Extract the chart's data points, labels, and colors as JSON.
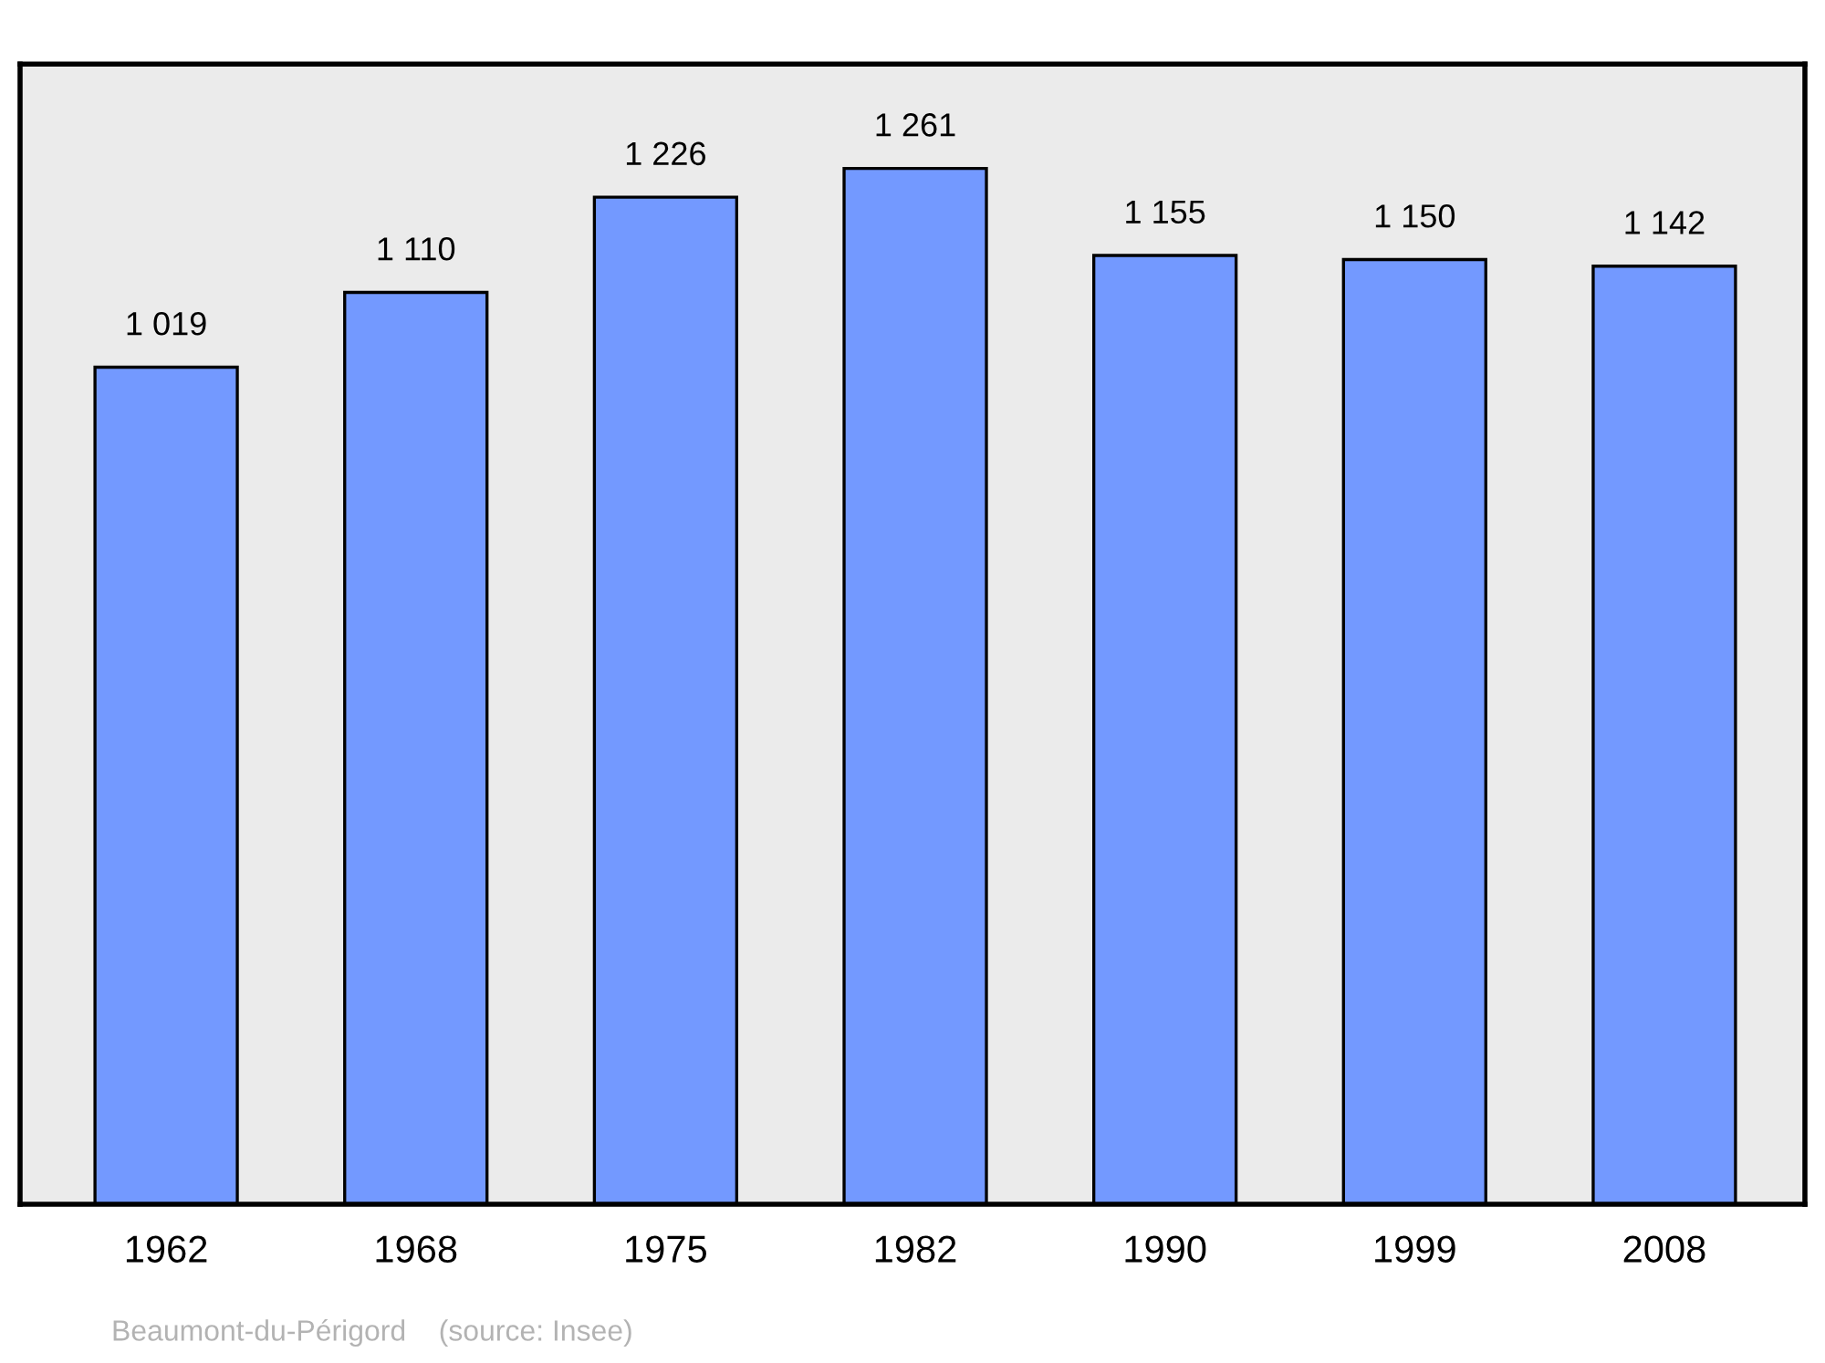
{
  "chart_data": {
    "type": "bar",
    "categories": [
      "1962",
      "1968",
      "1975",
      "1982",
      "1990",
      "1999",
      "2008"
    ],
    "values": [
      1019,
      1110,
      1226,
      1261,
      1155,
      1150,
      1142
    ],
    "color": "#7399ff",
    "ylim": [
      0,
      1388
    ],
    "tick_labels": "x",
    "data_labels": true,
    "value_labels": [
      "1 019",
      "1 110",
      "1 226",
      "1 261",
      "1 155",
      "1 150",
      "1 142"
    ],
    "grid": false,
    "legend": false,
    "annotations": [
      "Beaumont-du-Périgord    (source: Insee)"
    ]
  }
}
